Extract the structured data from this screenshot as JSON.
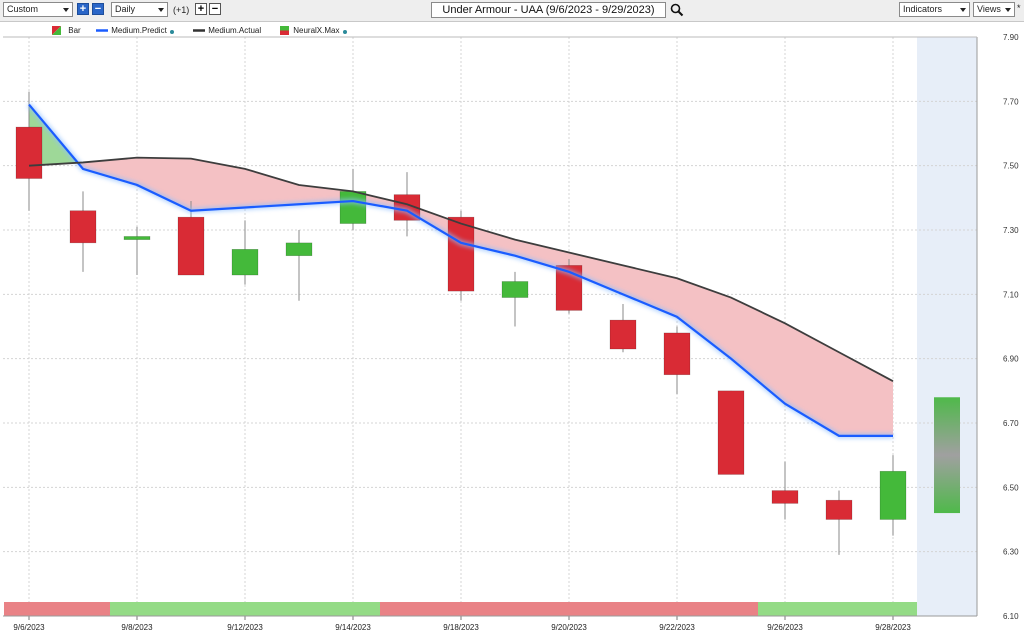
{
  "toolbar": {
    "template_value": "Custom",
    "period_value": "Daily",
    "offset_label": "(+1)",
    "title": "Under Armour - UAA (9/6/2023 - 9/29/2023)",
    "indicators_label": "Indicators",
    "views_label": "Views",
    "views_marker": "*"
  },
  "legend": [
    {
      "label": "Bar",
      "icon": "bar-swatch"
    },
    {
      "label": "Medium.Predict",
      "color": "#1a5cff"
    },
    {
      "label": "Medium.Actual",
      "color": "#333333"
    },
    {
      "label": "NeuralX.Max",
      "icon": "neuralx-swatch"
    }
  ],
  "colors": {
    "up": "#44b93a",
    "down": "#d92b35",
    "predict": "#1a5cff",
    "actual": "#3d3d3d",
    "fill_pos": "#f4c1c4",
    "fill_neg": "#9ed898",
    "forecast_bg": "#e7eef8",
    "band_red": "#e98286",
    "band_green": "#94db86"
  },
  "chart_data": {
    "type": "candlestick",
    "ylim": [
      6.1,
      7.9
    ],
    "yticks": [
      "7.90",
      "7.70",
      "7.50",
      "7.30",
      "7.10",
      "6.90",
      "6.70",
      "6.50",
      "6.30",
      "6.10"
    ],
    "x_labels": [
      "9/6/2023",
      "9/8/2023",
      "9/12/2023",
      "9/14/2023",
      "9/18/2023",
      "9/20/2023",
      "9/22/2023",
      "9/26/2023",
      "9/28/2023"
    ],
    "dates": [
      "9/6/2023",
      "9/7/2023",
      "9/8/2023",
      "9/11/2023",
      "9/12/2023",
      "9/13/2023",
      "9/14/2023",
      "9/15/2023",
      "9/18/2023",
      "9/19/2023",
      "9/20/2023",
      "9/21/2023",
      "9/22/2023",
      "9/25/2023",
      "9/26/2023",
      "9/27/2023",
      "9/28/2023"
    ],
    "candles": [
      {
        "date": "9/6/2023",
        "open": 7.62,
        "high": 7.73,
        "low": 7.36,
        "close": 7.46
      },
      {
        "date": "9/7/2023",
        "open": 7.36,
        "high": 7.42,
        "low": 7.17,
        "close": 7.26
      },
      {
        "date": "9/8/2023",
        "open": 7.27,
        "high": 7.31,
        "low": 7.16,
        "close": 7.28
      },
      {
        "date": "9/11/2023",
        "open": 7.34,
        "high": 7.39,
        "low": 7.16,
        "close": 7.16
      },
      {
        "date": "9/12/2023",
        "open": 7.16,
        "high": 7.33,
        "low": 7.13,
        "close": 7.24
      },
      {
        "date": "9/13/2023",
        "open": 7.22,
        "high": 7.3,
        "low": 7.08,
        "close": 7.26
      },
      {
        "date": "9/14/2023",
        "open": 7.32,
        "high": 7.49,
        "low": 7.3,
        "close": 7.42
      },
      {
        "date": "9/15/2023",
        "open": 7.41,
        "high": 7.48,
        "low": 7.28,
        "close": 7.33
      },
      {
        "date": "9/18/2023",
        "open": 7.34,
        "high": 7.36,
        "low": 7.08,
        "close": 7.11
      },
      {
        "date": "9/19/2023",
        "open": 7.09,
        "high": 7.17,
        "low": 7.0,
        "close": 7.14
      },
      {
        "date": "9/20/2023",
        "open": 7.19,
        "high": 7.21,
        "low": 7.04,
        "close": 7.05
      },
      {
        "date": "9/21/2023",
        "open": 7.02,
        "high": 7.07,
        "low": 6.92,
        "close": 6.93
      },
      {
        "date": "9/22/2023",
        "open": 6.98,
        "high": 7.0,
        "low": 6.79,
        "close": 6.85
      },
      {
        "date": "9/25/2023",
        "open": 6.8,
        "high": 6.8,
        "low": 6.54,
        "close": 6.54
      },
      {
        "date": "9/26/2023",
        "open": 6.49,
        "high": 6.58,
        "low": 6.4,
        "close": 6.45
      },
      {
        "date": "9/27/2023",
        "open": 6.46,
        "high": 6.49,
        "low": 6.29,
        "close": 6.4
      },
      {
        "date": "9/28/2023",
        "open": 6.4,
        "high": 6.6,
        "low": 6.35,
        "close": 6.55
      }
    ],
    "forecast": {
      "date": "9/29/2023",
      "open": 6.42,
      "close": 6.78
    },
    "series": [
      {
        "name": "Medium.Predict",
        "values": [
          7.69,
          7.49,
          7.44,
          7.36,
          7.37,
          7.38,
          7.39,
          7.36,
          7.26,
          7.22,
          7.17,
          7.1,
          7.03,
          6.9,
          6.76,
          6.66,
          6.66
        ]
      },
      {
        "name": "Medium.Actual",
        "values": [
          7.5,
          7.51,
          7.525,
          7.522,
          7.49,
          7.44,
          7.42,
          7.38,
          7.32,
          7.27,
          7.23,
          7.19,
          7.15,
          7.09,
          7.01,
          6.92,
          6.83
        ]
      }
    ],
    "signal_bands": [
      {
        "from": "9/5/2023",
        "to": "9/7/2023",
        "signal": "down"
      },
      {
        "from": "9/7/2023",
        "to": "9/14/2023",
        "signal": "up"
      },
      {
        "from": "9/14/2023",
        "to": "9/25/2023",
        "signal": "down"
      },
      {
        "from": "9/25/2023",
        "to": "9/28/2023",
        "signal": "up"
      }
    ]
  }
}
